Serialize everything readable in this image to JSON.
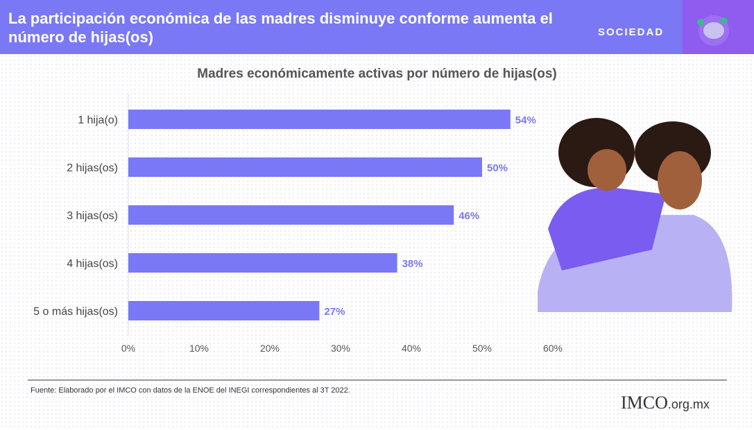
{
  "header": {
    "title": "La participación económica de las madres disminuye conforme aumenta el número de hijas(os)",
    "section": "SOCIEDAD",
    "icon": "handshake-icon"
  },
  "footer": {
    "source": "Fuente:  Elaborado por el IMCO con datos de la ENOE del INEGI  correspondientes al 3T 2022.",
    "logo": "IMCO",
    "logo_suffix": ".org.mx"
  },
  "colors": {
    "bar": "#7a78f5",
    "label": "#7a78f5",
    "header": "#7a78f5"
  },
  "chart_data": {
    "type": "bar",
    "orientation": "horizontal",
    "title": "Madres económicamente activas por número de hijas(os)",
    "categories": [
      "1 hija(o)",
      "2 hijas(os)",
      "3 hijas(os)",
      "4 hijas(os)",
      "5 o más hijas(os)"
    ],
    "values": [
      54,
      50,
      46,
      38,
      27
    ],
    "data_labels": [
      "54%",
      "50%",
      "46%",
      "38%",
      "27%"
    ],
    "xlim": [
      0,
      60
    ],
    "xticks": [
      "0%",
      "10%",
      "20%",
      "30%",
      "40%",
      "50%",
      "60%"
    ],
    "grid": false
  }
}
